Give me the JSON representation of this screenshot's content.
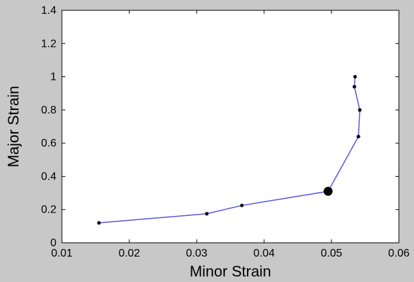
{
  "chart_data": {
    "type": "line",
    "title": "",
    "xlabel": "Minor Strain",
    "ylabel": "Major Strain",
    "xlim": [
      0.01,
      0.06
    ],
    "ylim": [
      0,
      1.4
    ],
    "grid": false,
    "xticks": [
      "0.01",
      "0.02",
      "0.03",
      "0.04",
      "0.05",
      "0.06"
    ],
    "yticks": [
      "0",
      "0.2",
      "0.4",
      "0.6",
      "0.8",
      "1",
      "1.2",
      "1.4"
    ],
    "series": [
      {
        "color": "#5555e0",
        "marker_color": "#000000",
        "points": [
          {
            "x": 0.0155,
            "y": 0.12
          },
          {
            "x": 0.0315,
            "y": 0.175
          },
          {
            "x": 0.0367,
            "y": 0.225
          },
          {
            "x": 0.0495,
            "y": 0.31
          },
          {
            "x": 0.054,
            "y": 0.64
          },
          {
            "x": 0.0542,
            "y": 0.8
          },
          {
            "x": 0.0534,
            "y": 0.94
          },
          {
            "x": 0.0535,
            "y": 1.0
          }
        ],
        "highlight_point": {
          "x": 0.0495,
          "y": 0.31
        }
      }
    ]
  }
}
